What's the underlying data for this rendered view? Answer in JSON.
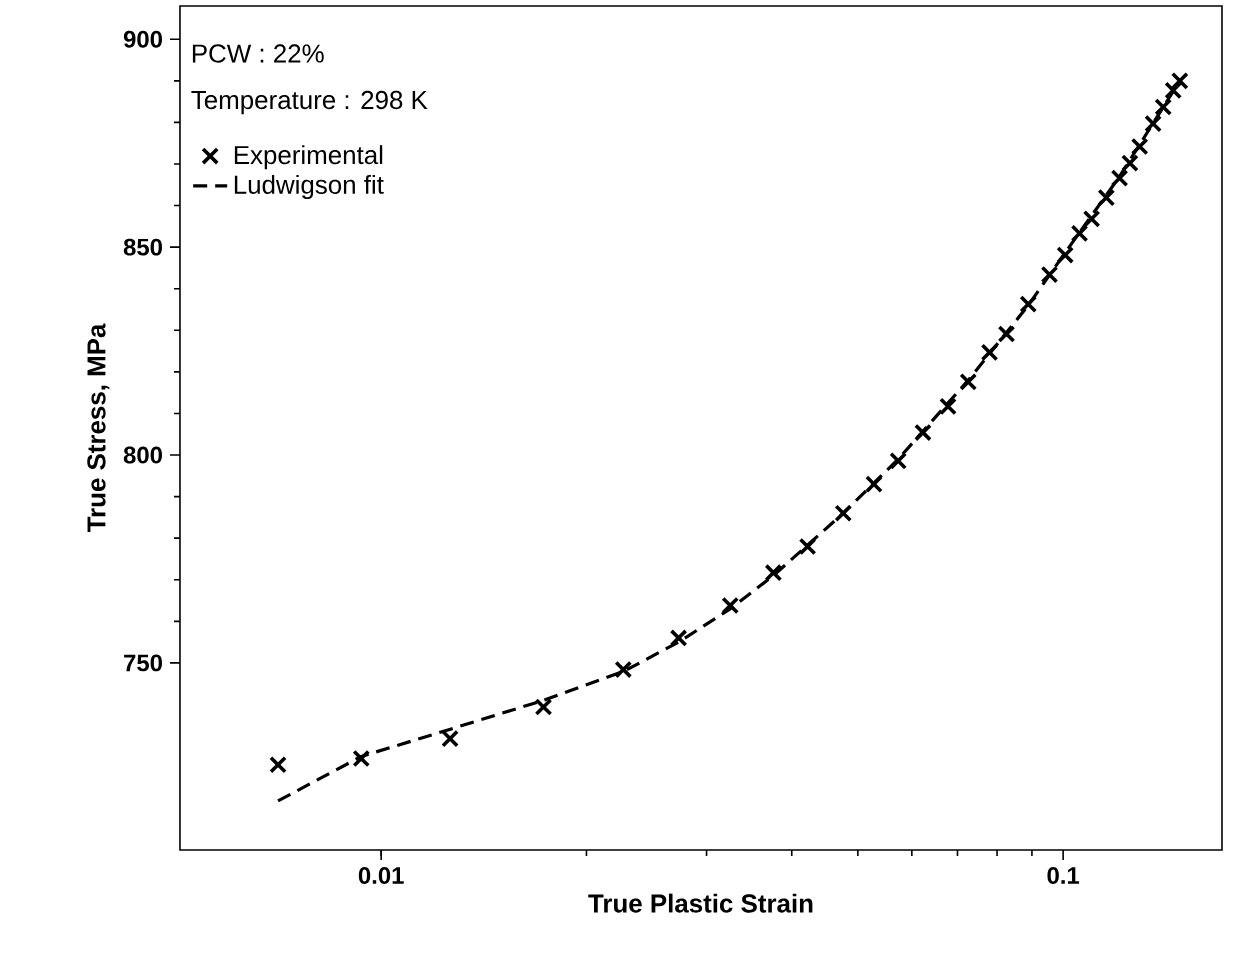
{
  "chart_data": {
    "type": "scatter",
    "xlabel": "True Plastic Strain",
    "ylabel": "True Stress, MPa",
    "annotations": [
      "PCW : 22%",
      "Temperature : 298 K"
    ],
    "log": "x",
    "xlim": [
      0.00507,
      0.171
    ],
    "xticks": [
      0.01,
      0.1
    ],
    "ylim": [
      705,
      908
    ],
    "yticks": [
      750,
      800,
      850,
      900
    ],
    "legend": "top left",
    "series": [
      {
        "name": "Experimental",
        "marker": "cross",
        "color": "#000000",
        "x": [
          0.00706,
          0.00935,
          0.01262,
          0.0173,
          0.02265,
          0.0273,
          0.0325,
          0.0376,
          0.0422,
          0.0476,
          0.0528,
          0.0573,
          0.0623,
          0.0678,
          0.0726,
          0.078,
          0.0826,
          0.0889,
          0.0955,
          0.1007,
          0.1057,
          0.1101,
          0.1157,
          0.121,
          0.1253,
          0.1295,
          0.1355,
          0.1402,
          0.145,
          0.1483
        ],
        "values": [
          725.5,
          727,
          731.8,
          739.4,
          748.4,
          756,
          763.8,
          771.7,
          778,
          786,
          793,
          798.6,
          805.4,
          811.7,
          817.6,
          824.7,
          829.1,
          836.3,
          843.4,
          848.1,
          853.3,
          856.8,
          861.9,
          866.6,
          870.2,
          874.2,
          879.7,
          883.7,
          887.7,
          890
        ]
      },
      {
        "name": "Ludwigson fit",
        "type": "line",
        "line_style": "dashed",
        "color": "#000000",
        "x": [
          0.00706,
          0.00935,
          0.0126,
          0.0173,
          0.0227,
          0.0273,
          0.0325,
          0.0376,
          0.0476,
          0.0573,
          0.0726,
          0.0889,
          0.1,
          0.121,
          0.1483
        ],
        "values": [
          716.8,
          727.5,
          734,
          741,
          748,
          755,
          763,
          771,
          786,
          799,
          818,
          836,
          848,
          867,
          890
        ]
      }
    ]
  }
}
